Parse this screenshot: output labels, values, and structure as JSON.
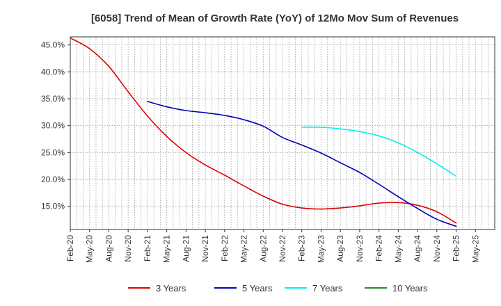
{
  "chart_data": {
    "type": "line",
    "title": "[6058]  Trend of Mean of Growth Rate (YoY) of 12Mo Mov Sum of Revenues",
    "xlabel": "",
    "ylabel": "",
    "x_ticks": [
      "Feb-20",
      "May-20",
      "Aug-20",
      "Nov-20",
      "Feb-21",
      "May-21",
      "Aug-21",
      "Nov-21",
      "Feb-22",
      "May-22",
      "Aug-22",
      "Nov-22",
      "Feb-23",
      "May-23",
      "Aug-23",
      "Nov-23",
      "Feb-24",
      "May-24",
      "Aug-24",
      "Nov-24",
      "Feb-25",
      "May-25"
    ],
    "y_ticks": [
      "15.0%",
      "20.0%",
      "25.0%",
      "30.0%",
      "35.0%",
      "40.0%",
      "45.0%"
    ],
    "y_tick_values": [
      15,
      20,
      25,
      30,
      35,
      40,
      45
    ],
    "ylim": [
      10.7,
      46.5
    ],
    "grid": true,
    "legend_position": "bottom",
    "series": [
      {
        "name": "3 Years",
        "color": "#dd0000",
        "points": [
          {
            "x": 0,
            "y": 46.3
          },
          {
            "x": 1,
            "y": 44.3
          },
          {
            "x": 2,
            "y": 41.0
          },
          {
            "x": 3,
            "y": 36.3
          },
          {
            "x": 4,
            "y": 31.8
          },
          {
            "x": 5,
            "y": 28.0
          },
          {
            "x": 6,
            "y": 25.0
          },
          {
            "x": 7,
            "y": 22.7
          },
          {
            "x": 8,
            "y": 20.8
          },
          {
            "x": 9,
            "y": 18.8
          },
          {
            "x": 10,
            "y": 16.9
          },
          {
            "x": 11,
            "y": 15.4
          },
          {
            "x": 12,
            "y": 14.7
          },
          {
            "x": 13,
            "y": 14.5
          },
          {
            "x": 14,
            "y": 14.7
          },
          {
            "x": 15,
            "y": 15.1
          },
          {
            "x": 16,
            "y": 15.6
          },
          {
            "x": 17,
            "y": 15.7
          },
          {
            "x": 18,
            "y": 15.2
          },
          {
            "x": 19,
            "y": 14.0
          },
          {
            "x": 20,
            "y": 11.9
          }
        ]
      },
      {
        "name": "5 Years",
        "color": "#0000bb",
        "points": [
          {
            "x": 4,
            "y": 34.5
          },
          {
            "x": 5,
            "y": 33.5
          },
          {
            "x": 6,
            "y": 32.8
          },
          {
            "x": 7,
            "y": 32.4
          },
          {
            "x": 8,
            "y": 31.9
          },
          {
            "x": 9,
            "y": 31.1
          },
          {
            "x": 10,
            "y": 29.9
          },
          {
            "x": 11,
            "y": 27.8
          },
          {
            "x": 12,
            "y": 26.4
          },
          {
            "x": 13,
            "y": 24.9
          },
          {
            "x": 14,
            "y": 23.1
          },
          {
            "x": 15,
            "y": 21.3
          },
          {
            "x": 16,
            "y": 19.1
          },
          {
            "x": 17,
            "y": 16.8
          },
          {
            "x": 18,
            "y": 14.6
          },
          {
            "x": 19,
            "y": 12.6
          },
          {
            "x": 20,
            "y": 11.3
          }
        ]
      },
      {
        "name": "7 Years",
        "color": "#00eeee",
        "points": [
          {
            "x": 12,
            "y": 29.7
          },
          {
            "x": 13,
            "y": 29.7
          },
          {
            "x": 14,
            "y": 29.4
          },
          {
            "x": 15,
            "y": 28.9
          },
          {
            "x": 16,
            "y": 28.1
          },
          {
            "x": 17,
            "y": 26.8
          },
          {
            "x": 18,
            "y": 25.0
          },
          {
            "x": 19,
            "y": 22.9
          },
          {
            "x": 20,
            "y": 20.6
          }
        ]
      },
      {
        "name": "10 Years",
        "color": "#228B22",
        "points": []
      }
    ]
  }
}
